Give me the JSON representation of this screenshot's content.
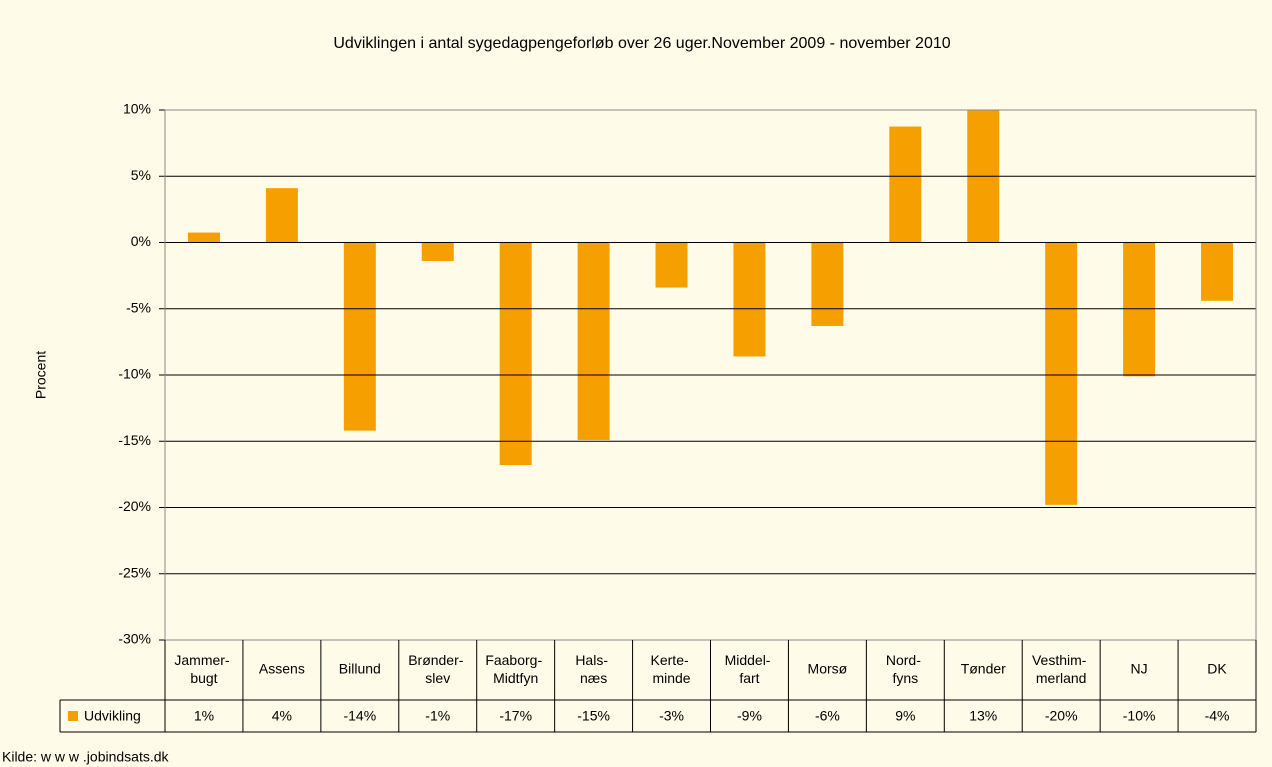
{
  "chart_data": {
    "type": "bar",
    "title": "Udviklingen i antal sygedagpengeforløb over 26 uger.November 2009 - november 2010",
    "y_label": "Procent",
    "source": "Kilde: w w w .jobindsats.dk",
    "categories": [
      "Jammer-\nbugt",
      "Assens",
      "Billund",
      "Brønder-\nslev",
      "Faaborg-\nMidtfyn",
      "Hals-\nnæs",
      "Kerte-\nminde",
      "Middel-\nfart",
      "Morsø",
      "Nord-\nfyns",
      "Tønder",
      "Vesthim-\nmerland",
      "NJ",
      "DK"
    ],
    "series": [
      {
        "name": "Udvikling",
        "color": "#f5a000",
        "values": [
          0.75,
          4.1,
          -14.2,
          -1.4,
          -16.8,
          -14.9,
          -3.4,
          -8.6,
          -6.3,
          8.75,
          13,
          -19.8,
          -10.1,
          -4.4
        ],
        "value_labels": [
          "1%",
          "4%",
          "-14%",
          "-1%",
          "-17%",
          "-15%",
          "-3%",
          "-9%",
          "-6%",
          "9%",
          "13%",
          "-20%",
          "-10%",
          "-4%"
        ]
      }
    ],
    "ylim": [
      -30,
      10
    ],
    "yticks": [
      {
        "value": -30,
        "label": "-30%"
      },
      {
        "value": -25,
        "label": "-25%"
      },
      {
        "value": -20,
        "label": "-20%"
      },
      {
        "value": -15,
        "label": "-15%"
      },
      {
        "value": -10,
        "label": "-10%"
      },
      {
        "value": -5,
        "label": "-5%"
      },
      {
        "value": 0,
        "label": "0%"
      },
      {
        "value": 5,
        "label": "5%"
      },
      {
        "value": 10,
        "label": "10%"
      }
    ],
    "grid": true
  }
}
